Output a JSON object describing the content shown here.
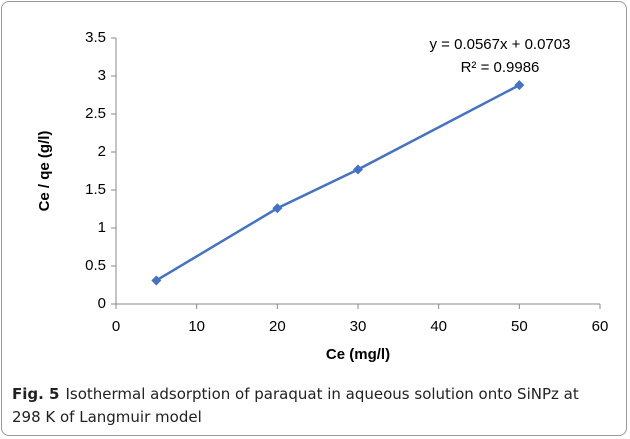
{
  "chart_data": {
    "type": "line",
    "x": [
      5,
      20,
      30,
      50
    ],
    "values": [
      0.31,
      1.26,
      1.77,
      2.88
    ],
    "color": "#4472c4",
    "xlabel": "Ce (mg/l)",
    "ylabel": "Ce / qe (g/l)",
    "xlim": [
      0,
      60
    ],
    "xticks": [
      0,
      10,
      20,
      30,
      40,
      50,
      60
    ],
    "ylim": [
      0,
      3.5
    ],
    "yticks": [
      0,
      0.5,
      1,
      1.5,
      2,
      2.5,
      3,
      3.5
    ],
    "grid": false,
    "annotations": [
      "y = 0.0567x + 0.0703",
      "R² = 0.9986"
    ]
  },
  "caption": {
    "label": "Fig. 5",
    "text": "Isothermal adsorption of paraquat in aqueous solution onto SiNPz at 298 K of Langmuir model"
  }
}
